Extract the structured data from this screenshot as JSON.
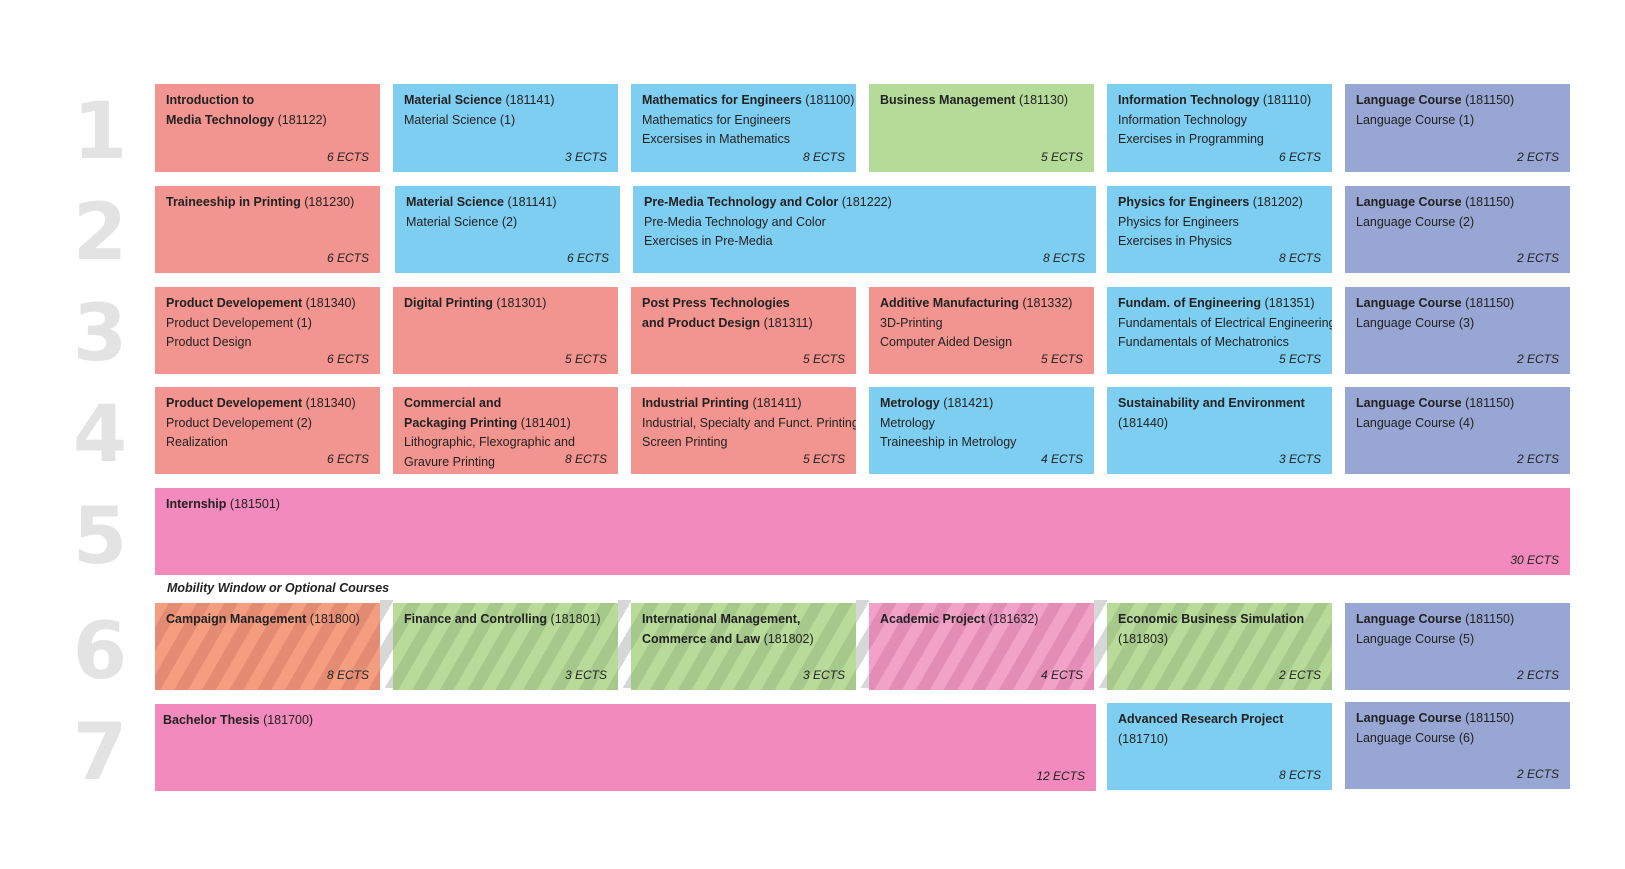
{
  "semesters": [
    "1",
    "2",
    "3",
    "4",
    "5",
    "6",
    "7"
  ],
  "mobility_label": "Mobility Window or Optional Courses",
  "courses": {
    "c1_1": {
      "title": "Introduction to",
      "title2": "Media Technology",
      "code": "(181122)",
      "lines": [],
      "ects": "6 ECTS"
    },
    "c1_2": {
      "title": "Material Science",
      "code": "(181141)",
      "lines": [
        "Material Science (1)"
      ],
      "ects": "3 ECTS"
    },
    "c1_3": {
      "title": "Mathematics for Engineers",
      "code": "(181100)",
      "lines": [
        "Mathematics for Engineers",
        "Excersises in Mathematics"
      ],
      "ects": "8 ECTS"
    },
    "c1_4": {
      "title": "Business Management",
      "code": "(181130)",
      "lines": [],
      "ects": "5 ECTS"
    },
    "c1_5": {
      "title": "Information Technology",
      "code": "(181110)",
      "lines": [
        "Information Technology",
        "Exercises in Programming"
      ],
      "ects": "6 ECTS"
    },
    "c1_6": {
      "title": "Language Course",
      "code": "(181150)",
      "lines": [
        "Language Course (1)"
      ],
      "ects": "2 ECTS"
    },
    "c2_1": {
      "title": "Traineeship in Printing",
      "code": "(181230)",
      "lines": [],
      "ects": "6 ECTS"
    },
    "c2_2": {
      "title": "Material Science",
      "code": "(181141)",
      "lines": [
        "Material Science (2)"
      ],
      "ects": "6 ECTS"
    },
    "c2_3": {
      "title": "Pre-Media Technology and Color",
      "code": "(181222)",
      "lines": [
        "Pre-Media Technology and Color",
        "Exercises in Pre-Media"
      ],
      "ects": "8 ECTS"
    },
    "c2_4": {
      "title": "Physics for Engineers",
      "code": "(181202)",
      "lines": [
        "Physics for Engineers",
        "Exercises in Physics"
      ],
      "ects": "8 ECTS"
    },
    "c2_5": {
      "title": "Language Course",
      "code": "(181150)",
      "lines": [
        "Language Course (2)"
      ],
      "ects": "2 ECTS"
    },
    "c3_1": {
      "title": "Product Developement",
      "code": "(181340)",
      "lines": [
        "Product Developement (1)",
        "Product Design"
      ],
      "ects": "6 ECTS"
    },
    "c3_2": {
      "title": "Digital Printing",
      "code": "(181301)",
      "lines": [],
      "ects": "5 ECTS"
    },
    "c3_3": {
      "title": "Post Press Technologies",
      "title2": "and Product Design",
      "code": "(181311)",
      "lines": [],
      "ects": "5 ECTS"
    },
    "c3_4": {
      "title": "Additive Manufacturing",
      "code": "(181332)",
      "lines": [
        "3D-Printing",
        "Computer Aided Design"
      ],
      "ects": "5 ECTS"
    },
    "c3_5": {
      "title": "Fundam. of Engineering",
      "code": "(181351)",
      "lines": [
        "Fundamentals of Electrical Engineering",
        "Fundamentals of Mechatronics"
      ],
      "ects": "5 ECTS"
    },
    "c3_6": {
      "title": "Language Course",
      "code": "(181150)",
      "lines": [
        "Language Course (3)"
      ],
      "ects": "2 ECTS"
    },
    "c4_1": {
      "title": "Product Developement",
      "code": "(181340)",
      "lines": [
        "Product Developement (2)",
        "Realization"
      ],
      "ects": "6 ECTS"
    },
    "c4_2": {
      "title": "Commercial and",
      "title2": "Packaging Printing",
      "code": "(181401)",
      "lines": [
        "Lithographic, Flexographic and",
        "Gravure Printing"
      ],
      "ects": "8 ECTS"
    },
    "c4_3": {
      "title": "Industrial Printing",
      "code": "(181411)",
      "lines": [
        "Industrial, Specialty and Funct. Printing",
        "Screen Printing"
      ],
      "ects": "5 ECTS"
    },
    "c4_4": {
      "title": "Metrology",
      "code": "(181421)",
      "lines": [
        "Metrology",
        "Traineeship in Metrology"
      ],
      "ects": "4 ECTS"
    },
    "c4_5": {
      "title": "Sustainability and Environment",
      "code": "",
      "lines": [
        "(181440)"
      ],
      "ects": "3 ECTS"
    },
    "c4_6": {
      "title": "Language Course",
      "code": "(181150)",
      "lines": [
        "Language Course (4)"
      ],
      "ects": "2 ECTS"
    },
    "c5_1": {
      "title": "Internship",
      "code": "(181501)",
      "lines": [],
      "ects": "30 ECTS"
    },
    "c6_1": {
      "title": "Campaign Management",
      "code": "(181800)",
      "lines": [],
      "ects": "8 ECTS"
    },
    "c6_2": {
      "title": "Finance and Controlling",
      "code": "(181801)",
      "lines": [],
      "ects": "3 ECTS"
    },
    "c6_3": {
      "title": "International Management,",
      "title2": "Commerce and Law",
      "code": "(181802)",
      "lines": [],
      "ects": "3 ECTS"
    },
    "c6_4": {
      "title": "Academic Project",
      "code": "(181632)",
      "lines": [],
      "ects": "4 ECTS"
    },
    "c6_5": {
      "title": "Economic Business Simulation",
      "code": "",
      "lines": [
        "(181803)"
      ],
      "ects": "2 ECTS"
    },
    "c6_6": {
      "title": "Language Course",
      "code": "(181150)",
      "lines": [
        "Language Course (5)"
      ],
      "ects": "2 ECTS"
    },
    "c7_1": {
      "title": "Bachelor Thesis",
      "code": "(181700)",
      "lines": [],
      "ects": "12 ECTS"
    },
    "c7_2": {
      "title": "Advanced Research Project",
      "code": "",
      "lines": [
        "(181710)"
      ],
      "ects": "8 ECTS"
    },
    "c7_3": {
      "title": "Language Course",
      "code": "(181150)",
      "lines": [
        "Language Course (6)"
      ],
      "ects": "2 ECTS"
    }
  }
}
